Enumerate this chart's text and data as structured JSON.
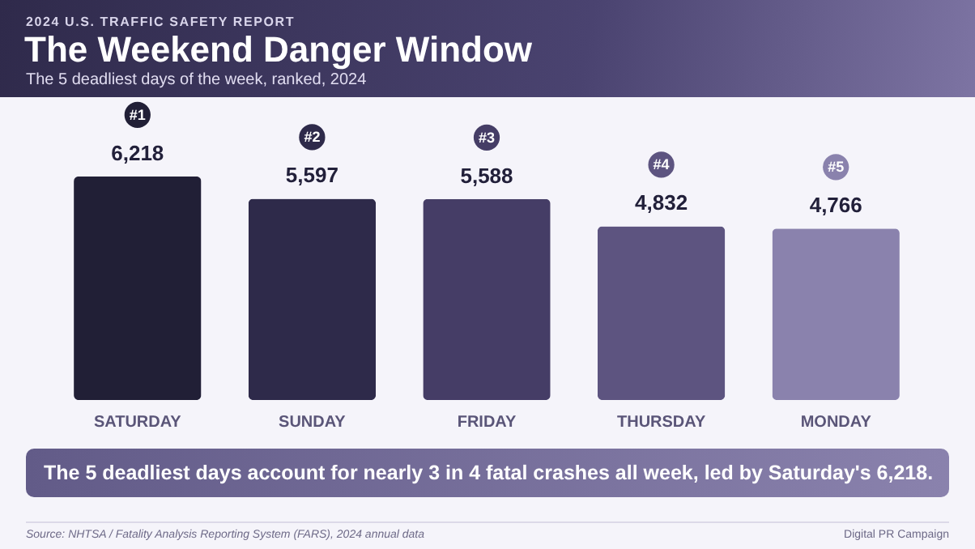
{
  "chart_data": {
    "type": "bar",
    "title": "The Weekend Danger Window",
    "subtitle": "The 5 deadliest days of the week, ranked, 2024",
    "categories": [
      "SATURDAY",
      "SUNDAY",
      "FRIDAY",
      "THURSDAY",
      "MONDAY"
    ],
    "values": [
      6218,
      5597,
      5588,
      4832,
      4766
    ],
    "colors": [
      "#211f36",
      "#2e2a4a",
      "#453d66",
      "#5d5480",
      "#8a82ad"
    ],
    "value_labels": [
      "6,218",
      "5,597",
      "5,588",
      "4,832",
      "4,766"
    ],
    "annotations": [
      "2024 U.S. TRAFFIC SAFETY REPORT",
      "The 5 deadliest days account for nearly 3 in 4 fatal crashes all week, led by Saturday's 6,218.",
      "Source: NHTSA / Fatality Analysis Reporting System (FARS), 2024 annual data",
      "Digital PR Campaign",
      "#1",
      "#2",
      "#3",
      "#4",
      "#5"
    ]
  }
}
